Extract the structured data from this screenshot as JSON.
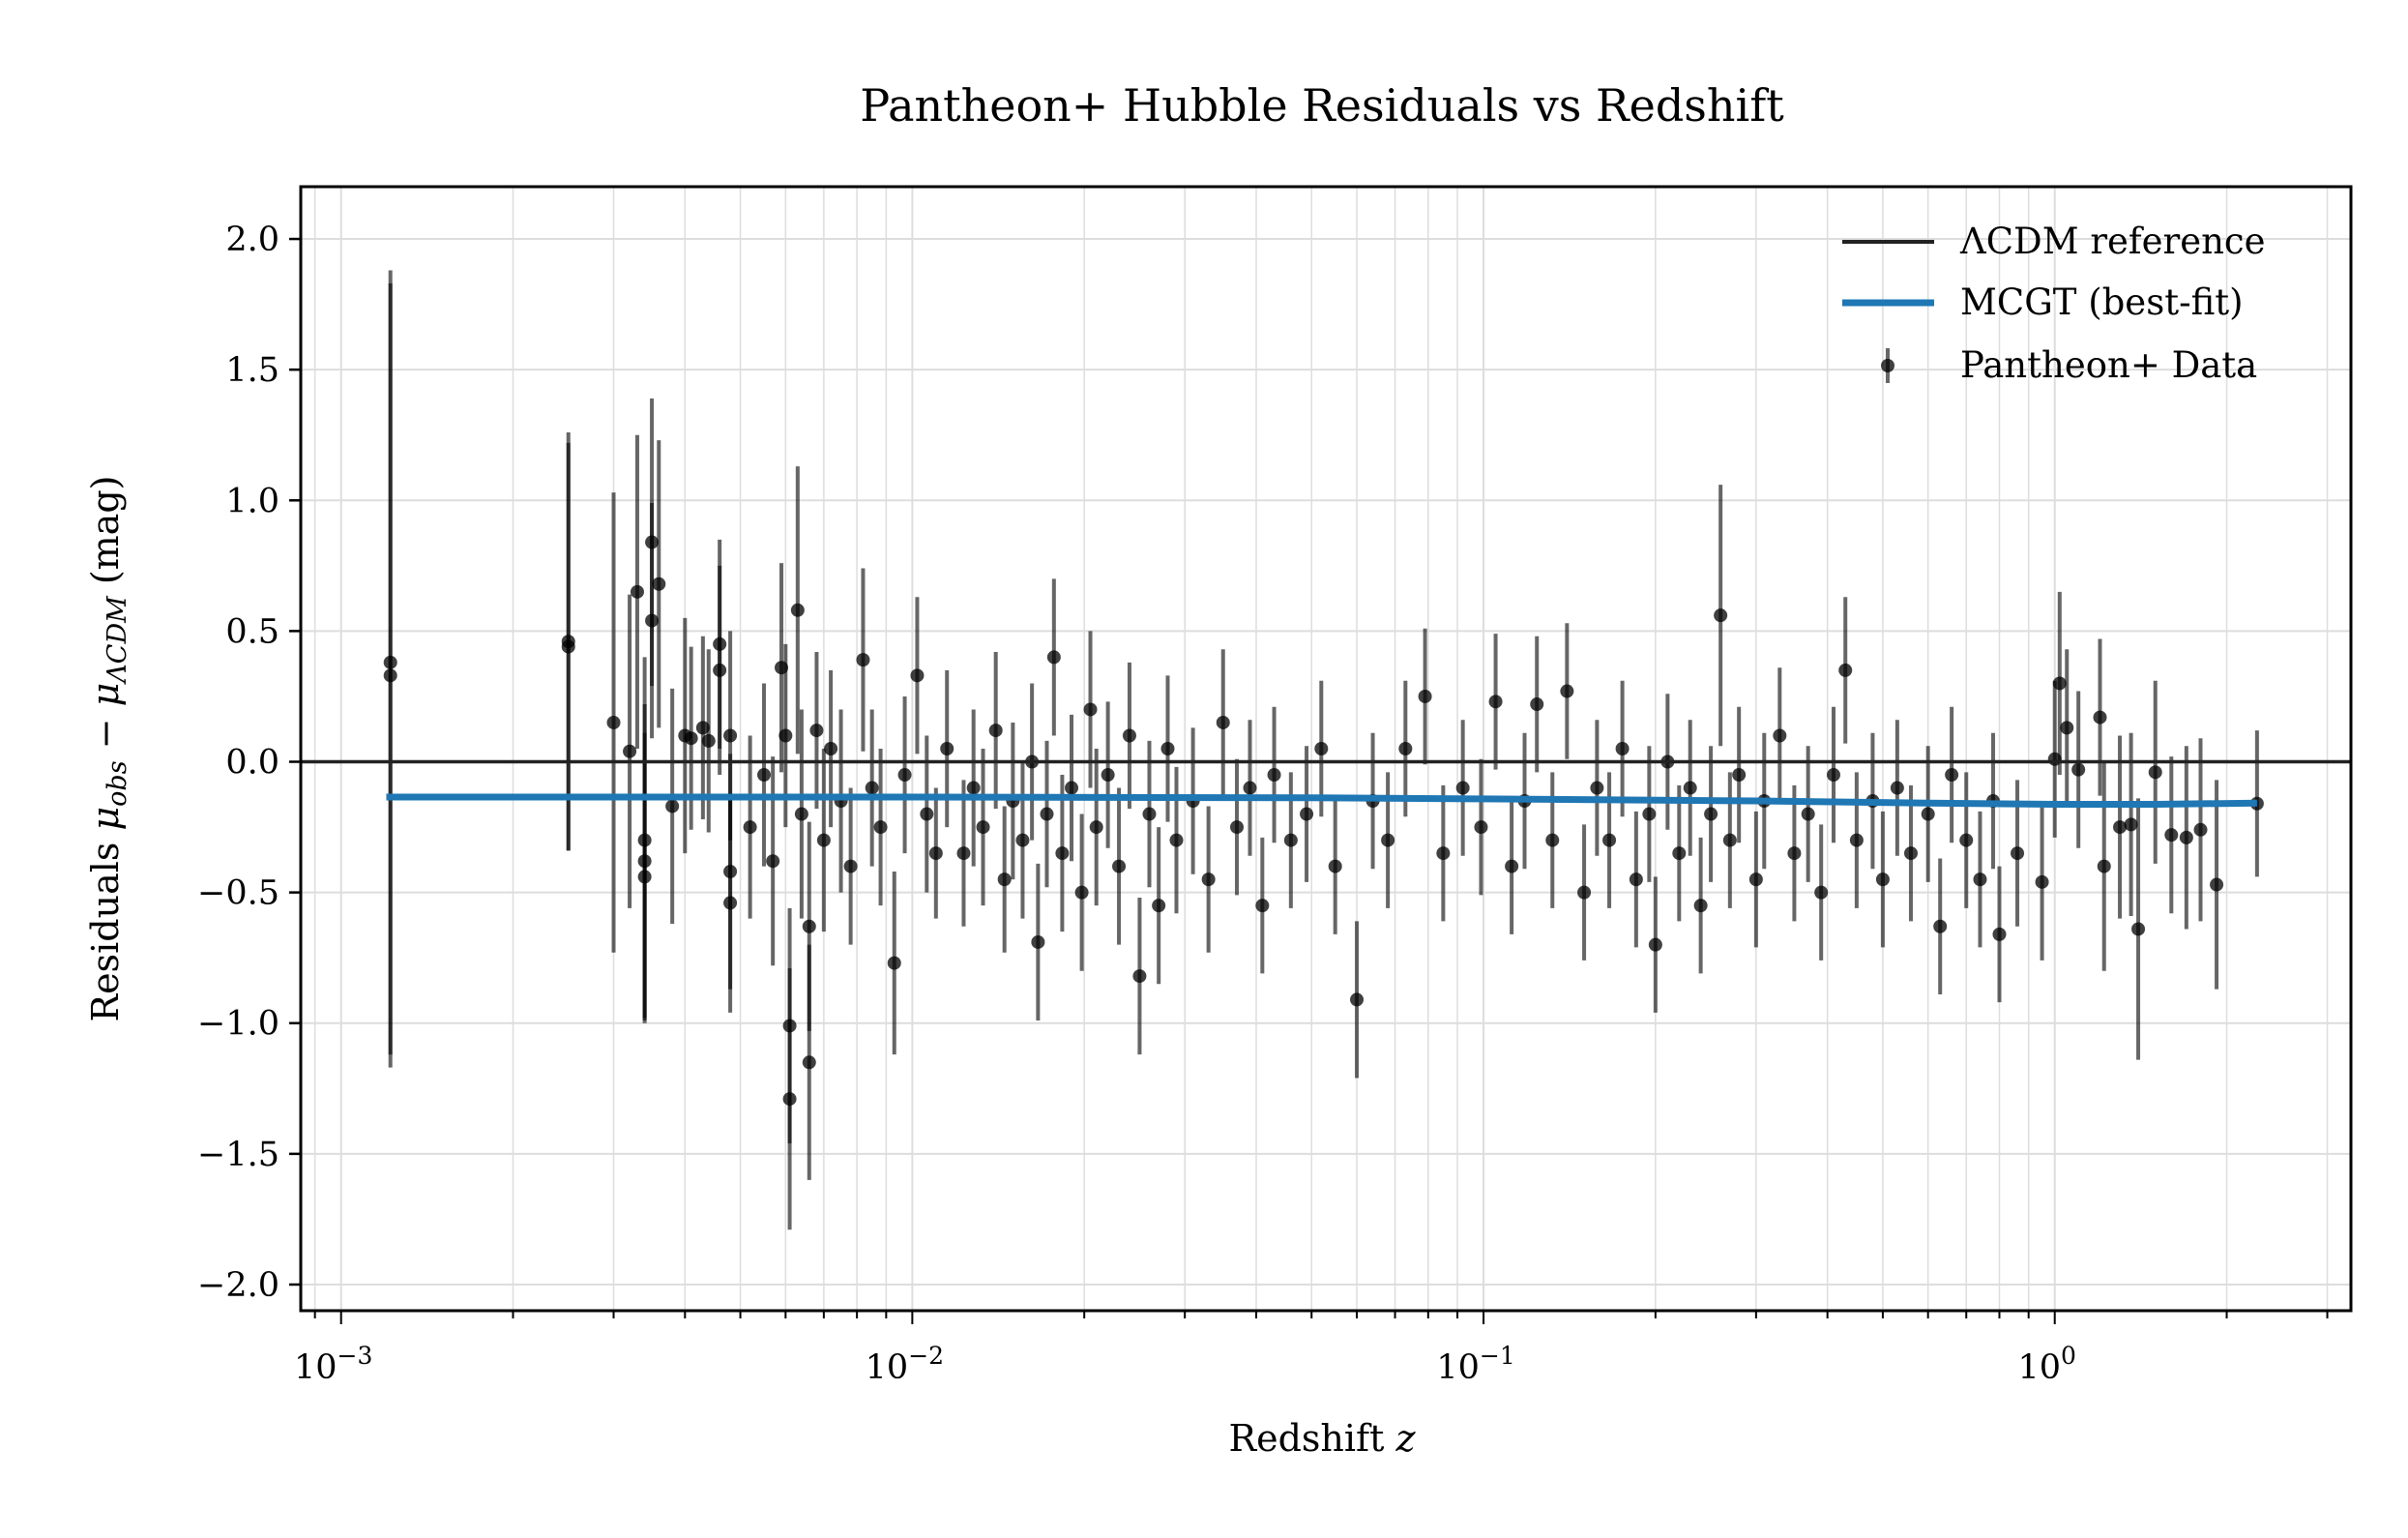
{
  "chart_data": {
    "type": "scatter",
    "title": "Pantheon+ Hubble Residuals vs Redshift",
    "xlabel_main": "Redshift ",
    "xlabel_var": "z",
    "ylabel_parts": {
      "pre": "Residuals ",
      "mu1": "μ",
      "sub1": "obs",
      "minus": " − ",
      "mu2": "μ",
      "sub2": "ΛCDM",
      "post": " (mag)"
    },
    "xscale": "log",
    "xlim": [
      0.00085,
      3.3
    ],
    "ylim": [
      -2.1,
      2.2
    ],
    "xticks": [
      {
        "v": 0.001,
        "base": "10",
        "exp": "−3"
      },
      {
        "v": 0.01,
        "base": "10",
        "exp": "−2"
      },
      {
        "v": 0.1,
        "base": "10",
        "exp": "−1"
      },
      {
        "v": 1,
        "base": "10",
        "exp": "0"
      }
    ],
    "yticks": [
      {
        "v": 2,
        "l": "2.0"
      },
      {
        "v": 1.5,
        "l": "1.5"
      },
      {
        "v": 1,
        "l": "1.0"
      },
      {
        "v": 0.5,
        "l": "0.5"
      },
      {
        "v": 0,
        "l": "0.0"
      },
      {
        "v": -0.5,
        "l": "−0.5"
      },
      {
        "v": -1,
        "l": "−1.0"
      },
      {
        "v": -1.5,
        "l": "−1.5"
      },
      {
        "v": -2,
        "l": "−2.0"
      }
    ],
    "grid": true,
    "legend_position": "top-right",
    "legend": [
      "ΛCDM reference",
      "MCGT (best-fit)",
      "Pantheon+ Data"
    ],
    "colors": {
      "lcdm": "#222222",
      "mcgt": "#1f77b4",
      "data": "#000000"
    },
    "lcdm_reference": 0,
    "mcgt": [
      [
        0.0012,
        -0.135
      ],
      [
        0.01,
        -0.135
      ],
      [
        0.05,
        -0.138
      ],
      [
        0.1,
        -0.142
      ],
      [
        0.3,
        -0.15
      ],
      [
        0.6,
        -0.158
      ],
      [
        1.0,
        -0.163
      ],
      [
        1.5,
        -0.163
      ],
      [
        2.26,
        -0.158
      ]
    ],
    "points": [
      [
        0.00122,
        0.38,
        1.5
      ],
      [
        0.00122,
        0.33,
        1.5
      ],
      [
        0.0025,
        0.46,
        0.8
      ],
      [
        0.0025,
        0.44,
        0.78
      ],
      [
        0.003,
        0.15,
        0.88
      ],
      [
        0.0032,
        0.04,
        0.6
      ],
      [
        0.0033,
        0.65,
        0.6
      ],
      [
        0.0034,
        -0.3,
        0.7
      ],
      [
        0.0034,
        -0.44,
        0.55
      ],
      [
        0.0034,
        -0.38,
        0.6
      ],
      [
        0.0035,
        0.84,
        0.55
      ],
      [
        0.0035,
        0.54,
        0.45
      ],
      [
        0.0036,
        0.68,
        0.55
      ],
      [
        0.0038,
        -0.17,
        0.45
      ],
      [
        0.004,
        0.1,
        0.45
      ],
      [
        0.0041,
        0.09,
        0.35
      ],
      [
        0.0043,
        0.13,
        0.35
      ],
      [
        0.0044,
        0.08,
        0.35
      ],
      [
        0.0046,
        0.45,
        0.4
      ],
      [
        0.0046,
        0.35,
        0.4
      ],
      [
        0.0048,
        -0.54,
        0.42
      ],
      [
        0.0048,
        0.1,
        0.4
      ],
      [
        0.0048,
        -0.42,
        0.45
      ],
      [
        0.0052,
        -0.25,
        0.35
      ],
      [
        0.0055,
        -0.05,
        0.35
      ],
      [
        0.0057,
        -0.38,
        0.4
      ],
      [
        0.0059,
        0.36,
        0.4
      ],
      [
        0.006,
        0.1,
        0.35
      ],
      [
        0.0061,
        -1.01,
        0.45
      ],
      [
        0.0061,
        -1.29,
        0.5
      ],
      [
        0.0063,
        0.58,
        0.55
      ],
      [
        0.0064,
        -0.2,
        0.4
      ],
      [
        0.0066,
        -1.15,
        0.45
      ],
      [
        0.0066,
        -0.63,
        0.4
      ],
      [
        0.0068,
        0.12,
        0.3
      ],
      [
        0.007,
        -0.3,
        0.35
      ],
      [
        0.0072,
        0.05,
        0.3
      ],
      [
        0.0075,
        -0.15,
        0.35
      ],
      [
        0.0078,
        -0.4,
        0.3
      ],
      [
        0.0082,
        0.39,
        0.35
      ],
      [
        0.0085,
        -0.1,
        0.3
      ],
      [
        0.0088,
        -0.25,
        0.3
      ],
      [
        0.0093,
        -0.77,
        0.35
      ],
      [
        0.0097,
        -0.05,
        0.3
      ],
      [
        0.0102,
        0.33,
        0.3
      ],
      [
        0.0106,
        -0.2,
        0.3
      ],
      [
        0.011,
        -0.35,
        0.25
      ],
      [
        0.0115,
        0.05,
        0.3
      ],
      [
        0.0123,
        -0.35,
        0.28
      ],
      [
        0.0128,
        -0.1,
        0.3
      ],
      [
        0.0133,
        -0.25,
        0.3
      ],
      [
        0.014,
        0.12,
        0.3
      ],
      [
        0.0145,
        -0.45,
        0.28
      ],
      [
        0.015,
        -0.15,
        0.3
      ],
      [
        0.0156,
        -0.3,
        0.3
      ],
      [
        0.0162,
        0.0,
        0.3
      ],
      [
        0.0166,
        -0.69,
        0.3
      ],
      [
        0.0172,
        -0.2,
        0.28
      ],
      [
        0.0177,
        0.4,
        0.3
      ],
      [
        0.0183,
        -0.35,
        0.3
      ],
      [
        0.019,
        -0.1,
        0.28
      ],
      [
        0.0198,
        -0.5,
        0.3
      ],
      [
        0.0205,
        0.2,
        0.3
      ],
      [
        0.021,
        -0.25,
        0.3
      ],
      [
        0.022,
        -0.05,
        0.28
      ],
      [
        0.023,
        -0.4,
        0.3
      ],
      [
        0.024,
        0.1,
        0.28
      ],
      [
        0.025,
        -0.82,
        0.3
      ],
      [
        0.026,
        -0.2,
        0.28
      ],
      [
        0.027,
        -0.55,
        0.3
      ],
      [
        0.028,
        0.05,
        0.28
      ],
      [
        0.029,
        -0.3,
        0.28
      ],
      [
        0.031,
        -0.15,
        0.28
      ],
      [
        0.033,
        -0.45,
        0.28
      ],
      [
        0.035,
        0.15,
        0.28
      ],
      [
        0.037,
        -0.25,
        0.26
      ],
      [
        0.039,
        -0.1,
        0.26
      ],
      [
        0.041,
        -0.55,
        0.26
      ],
      [
        0.043,
        -0.05,
        0.26
      ],
      [
        0.046,
        -0.3,
        0.26
      ],
      [
        0.049,
        -0.2,
        0.26
      ],
      [
        0.052,
        0.05,
        0.26
      ],
      [
        0.055,
        -0.4,
        0.26
      ],
      [
        0.06,
        -0.91,
        0.3
      ],
      [
        0.064,
        -0.15,
        0.26
      ],
      [
        0.068,
        -0.3,
        0.26
      ],
      [
        0.073,
        0.05,
        0.26
      ],
      [
        0.079,
        0.25,
        0.26
      ],
      [
        0.085,
        -0.35,
        0.26
      ],
      [
        0.092,
        -0.1,
        0.26
      ],
      [
        0.099,
        -0.25,
        0.26
      ],
      [
        0.105,
        0.23,
        0.26
      ],
      [
        0.112,
        -0.4,
        0.26
      ],
      [
        0.118,
        -0.15,
        0.26
      ],
      [
        0.124,
        0.22,
        0.26
      ],
      [
        0.132,
        -0.3,
        0.26
      ],
      [
        0.14,
        0.27,
        0.26
      ],
      [
        0.15,
        -0.5,
        0.26
      ],
      [
        0.158,
        -0.1,
        0.26
      ],
      [
        0.166,
        -0.3,
        0.26
      ],
      [
        0.175,
        0.05,
        0.26
      ],
      [
        0.185,
        -0.45,
        0.26
      ],
      [
        0.195,
        -0.2,
        0.26
      ],
      [
        0.2,
        -0.7,
        0.26
      ],
      [
        0.21,
        0.0,
        0.26
      ],
      [
        0.22,
        -0.35,
        0.26
      ],
      [
        0.23,
        -0.1,
        0.26
      ],
      [
        0.24,
        -0.55,
        0.26
      ],
      [
        0.25,
        -0.2,
        0.26
      ],
      [
        0.26,
        0.56,
        0.5
      ],
      [
        0.27,
        -0.3,
        0.26
      ],
      [
        0.28,
        -0.05,
        0.26
      ],
      [
        0.3,
        -0.45,
        0.26
      ],
      [
        0.31,
        -0.15,
        0.26
      ],
      [
        0.33,
        0.1,
        0.26
      ],
      [
        0.35,
        -0.35,
        0.26
      ],
      [
        0.37,
        -0.2,
        0.26
      ],
      [
        0.39,
        -0.5,
        0.26
      ],
      [
        0.41,
        -0.05,
        0.26
      ],
      [
        0.43,
        0.35,
        0.28
      ],
      [
        0.45,
        -0.3,
        0.26
      ],
      [
        0.48,
        -0.15,
        0.26
      ],
      [
        0.5,
        -0.45,
        0.26
      ],
      [
        0.53,
        -0.1,
        0.26
      ],
      [
        0.56,
        -0.35,
        0.26
      ],
      [
        0.6,
        -0.2,
        0.26
      ],
      [
        0.63,
        -0.63,
        0.26
      ],
      [
        0.66,
        -0.05,
        0.26
      ],
      [
        0.7,
        -0.3,
        0.26
      ],
      [
        0.74,
        -0.45,
        0.26
      ],
      [
        0.78,
        -0.15,
        0.26
      ],
      [
        0.8,
        -0.66,
        0.26
      ],
      [
        0.86,
        -0.35,
        0.28
      ],
      [
        0.95,
        -0.46,
        0.3
      ],
      [
        1.0,
        0.01,
        0.3
      ],
      [
        1.02,
        0.3,
        0.35
      ],
      [
        1.05,
        0.13,
        0.3
      ],
      [
        1.1,
        -0.03,
        0.3
      ],
      [
        1.2,
        0.17,
        0.3
      ],
      [
        1.22,
        -0.4,
        0.4
      ],
      [
        1.3,
        -0.25,
        0.35
      ],
      [
        1.36,
        -0.24,
        0.35
      ],
      [
        1.4,
        -0.64,
        0.5
      ],
      [
        1.5,
        -0.04,
        0.35
      ],
      [
        1.6,
        -0.28,
        0.3
      ],
      [
        1.7,
        -0.29,
        0.35
      ],
      [
        1.8,
        -0.26,
        0.35
      ],
      [
        1.92,
        -0.47,
        0.4
      ],
      [
        2.26,
        -0.16,
        0.28
      ]
    ]
  }
}
